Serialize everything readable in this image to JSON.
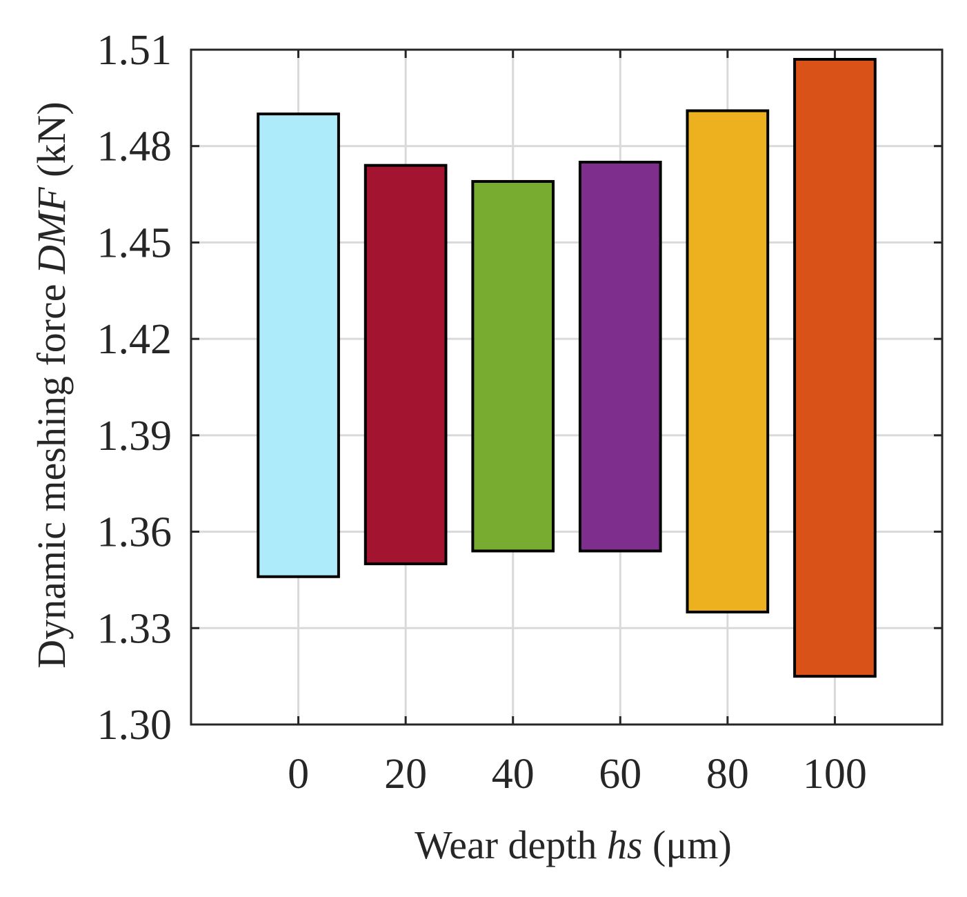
{
  "chart_data": {
    "type": "bar",
    "subtype": "floating-range",
    "title": "",
    "x": [
      0,
      20,
      40,
      60,
      80,
      100
    ],
    "categories": [
      "0",
      "20",
      "40",
      "60",
      "80",
      "100"
    ],
    "ranges": [
      {
        "x": 0,
        "low": 1.346,
        "high": 1.49,
        "color": "#ADEBFB"
      },
      {
        "x": 20,
        "low": 1.35,
        "high": 1.474,
        "color": "#A2142F"
      },
      {
        "x": 40,
        "low": 1.354,
        "high": 1.469,
        "color": "#77AC30"
      },
      {
        "x": 60,
        "low": 1.354,
        "high": 1.475,
        "color": "#7E2F8E"
      },
      {
        "x": 80,
        "low": 1.335,
        "high": 1.491,
        "color": "#EDB120"
      },
      {
        "x": 100,
        "low": 1.315,
        "high": 1.507,
        "color": "#D95319"
      }
    ],
    "xlim": [
      -20,
      120
    ],
    "ylim": [
      1.3,
      1.51
    ],
    "xticks": [
      0,
      20,
      40,
      60,
      80,
      100
    ],
    "yticks": [
      1.3,
      1.33,
      1.36,
      1.39,
      1.42,
      1.45,
      1.48,
      1.51
    ],
    "ytick_labels": [
      "1.30",
      "1.33",
      "1.36",
      "1.39",
      "1.42",
      "1.45",
      "1.48",
      "1.51"
    ],
    "bar_width": 15,
    "grid": true,
    "xlabel": {
      "prefix": "Wear depth ",
      "italic": "hs",
      "suffix": " (μm)"
    },
    "ylabel": {
      "prefix": "Dynamic meshing force ",
      "italic": "DMF",
      "suffix": " (kN)"
    }
  }
}
